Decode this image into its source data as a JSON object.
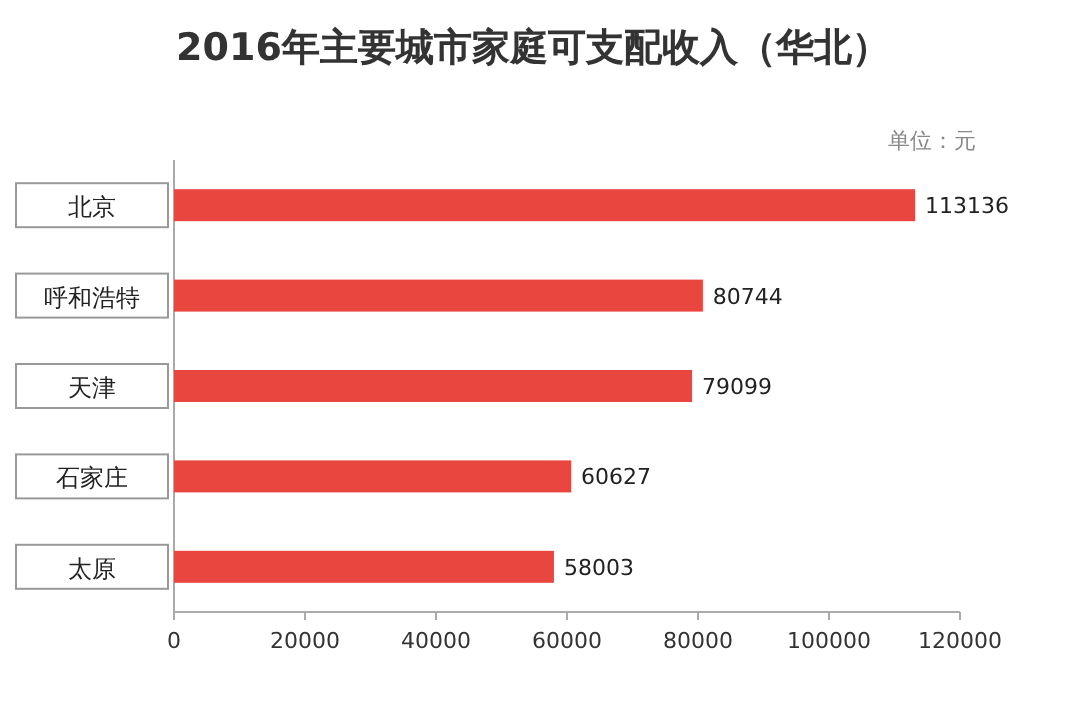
{
  "chart_data": {
    "type": "bar",
    "orientation": "horizontal",
    "title": "2016年主要城市家庭可支配收入（华北）",
    "categories": [
      "北京",
      "呼和浩特",
      "天津",
      "石家庄",
      "太原"
    ],
    "values": [
      113136,
      80744,
      79099,
      60627,
      58003
    ],
    "color": "#e8463f",
    "xlim": [
      0,
      120000
    ],
    "xticks": [
      0,
      20000,
      40000,
      60000,
      80000,
      100000,
      120000
    ],
    "data_labels": true,
    "grid": false,
    "annotations": [
      "单位：元"
    ]
  }
}
